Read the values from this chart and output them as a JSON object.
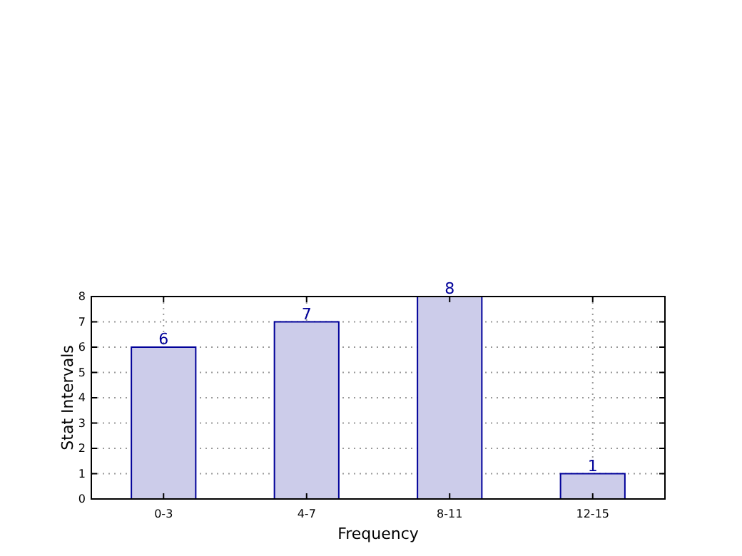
{
  "chart_data": {
    "type": "bar",
    "xlabel": "Frequency",
    "ylabel": "Stat Intervals",
    "categories": [
      "0-3",
      "4-7",
      "8-11",
      "12-15"
    ],
    "values": [
      6,
      7,
      8,
      1
    ],
    "color": "#ccccea",
    "ylim": [
      0,
      8
    ],
    "yticks": [
      0,
      1,
      2,
      3,
      4,
      5,
      6,
      7,
      8
    ],
    "grid": true,
    "data_labels": true
  }
}
